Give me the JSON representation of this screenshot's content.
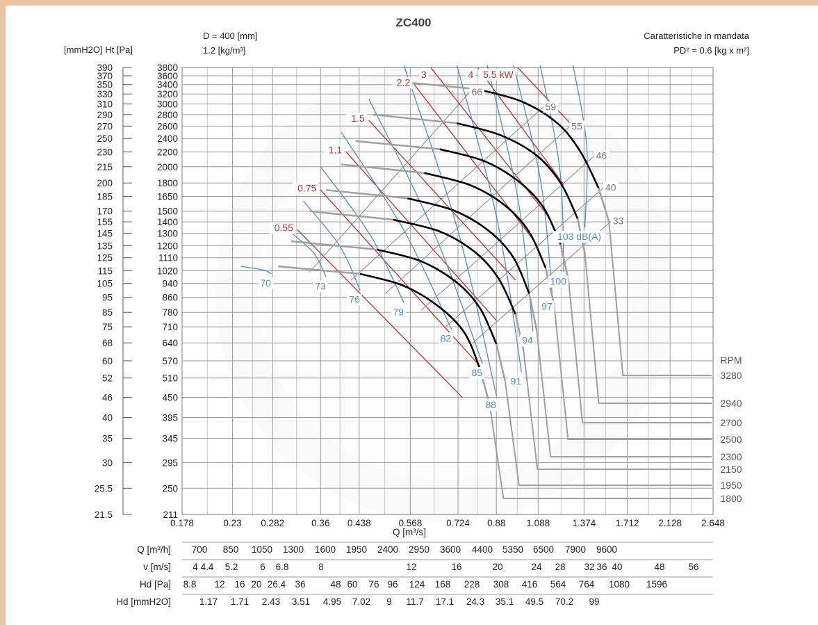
{
  "header": {
    "title": "ZC400",
    "left_axis_units": "[mmH2O] Ht [Pa]",
    "diameter": "D = 400 [mm]",
    "density": "1.2 [kg/m³]",
    "right_line1": "Caratteristiche in mandata",
    "right_line2": "PD² = 0.6 [kg x m²]"
  },
  "chart_data": {
    "type": "line",
    "title": "ZC400",
    "xlabel": "Q [m³/s]",
    "ylabel": "Ht [Pa]",
    "x_scale": "log",
    "y_scale": "log",
    "xlim": [
      0.178,
      2.648
    ],
    "ylim": [
      211,
      3800
    ],
    "x_ticks": [
      "0.178",
      "0.23",
      "0.282",
      "0.36",
      "0.438",
      "0.568",
      "0.724",
      "0.88",
      "1.088",
      "1.374",
      "1.712",
      "2.128",
      "2.648"
    ],
    "y_ticks_pa": [
      "3800",
      "3600",
      "3400",
      "3200",
      "3000",
      "2800",
      "2600",
      "2400",
      "2200",
      "2000",
      "1800",
      "1650",
      "1500",
      "1400",
      "1300",
      "1200",
      "1110",
      "1020",
      "940",
      "860",
      "780",
      "710",
      "640",
      "570",
      "510",
      "450",
      "395",
      "345",
      "295",
      "250",
      "211"
    ],
    "y_ticks_mmh2o": [
      "390",
      "370",
      "350",
      "330",
      "310",
      "290",
      "270",
      "250",
      "230",
      "215",
      "200",
      "185",
      "170",
      "155",
      "145",
      "135",
      "125",
      "115",
      "105",
      "95",
      "85",
      "75",
      "68",
      "60",
      "52",
      "46",
      "40",
      "35",
      "30",
      "25.5",
      "21.5"
    ],
    "rpm_header": "RPM",
    "rpm_curves": [
      {
        "rpm": "3280",
        "points": [
          [
            0.52,
            3480
          ],
          [
            0.8,
            3300
          ],
          [
            1.0,
            3050
          ],
          [
            1.2,
            2650
          ],
          [
            1.35,
            2200
          ],
          [
            1.48,
            1740
          ],
          [
            1.56,
            1400
          ]
        ]
      },
      {
        "rpm": "2940",
        "points": [
          [
            0.47,
            2800
          ],
          [
            0.72,
            2650
          ],
          [
            0.9,
            2450
          ],
          [
            1.08,
            2150
          ],
          [
            1.22,
            1800
          ],
          [
            1.33,
            1430
          ],
          [
            1.38,
            1140
          ]
        ]
      },
      {
        "rpm": "2700",
        "points": [
          [
            0.43,
            2360
          ],
          [
            0.66,
            2240
          ],
          [
            0.83,
            2070
          ],
          [
            0.99,
            1810
          ],
          [
            1.12,
            1530
          ],
          [
            1.22,
            1210
          ],
          [
            1.27,
            960
          ]
        ]
      },
      {
        "rpm": "2500",
        "points": [
          [
            0.4,
            2030
          ],
          [
            0.61,
            1920
          ],
          [
            0.77,
            1775
          ],
          [
            0.92,
            1555
          ],
          [
            1.04,
            1310
          ],
          [
            1.13,
            1040
          ],
          [
            1.18,
            820
          ]
        ]
      },
      {
        "rpm": "2300",
        "points": [
          [
            0.37,
            1720
          ],
          [
            0.56,
            1630
          ],
          [
            0.71,
            1505
          ],
          [
            0.85,
            1315
          ],
          [
            0.96,
            1110
          ],
          [
            1.04,
            880
          ],
          [
            1.08,
            695
          ]
        ]
      },
      {
        "rpm": "2150",
        "points": [
          [
            0.34,
            1500
          ],
          [
            0.52,
            1420
          ],
          [
            0.66,
            1315
          ],
          [
            0.79,
            1150
          ],
          [
            0.89,
            970
          ],
          [
            0.97,
            770
          ],
          [
            1.01,
            610
          ]
        ]
      },
      {
        "rpm": "1950",
        "points": [
          [
            0.31,
            1235
          ],
          [
            0.48,
            1170
          ],
          [
            0.6,
            1085
          ],
          [
            0.72,
            945
          ],
          [
            0.81,
            800
          ],
          [
            0.88,
            635
          ],
          [
            0.92,
            500
          ]
        ]
      },
      {
        "rpm": "1800",
        "points": [
          [
            0.29,
            1050
          ],
          [
            0.44,
            1000
          ],
          [
            0.55,
            925
          ],
          [
            0.66,
            805
          ],
          [
            0.75,
            680
          ],
          [
            0.81,
            540
          ],
          [
            0.85,
            430
          ]
        ]
      }
    ],
    "power_kw": [
      {
        "label": "5.5 kW",
        "points": [
          [
            0.98,
            3850
          ],
          [
            1.28,
            2650
          ]
        ]
      },
      {
        "label": "4",
        "points": [
          [
            0.8,
            3850
          ],
          [
            1.24,
            1780
          ]
        ]
      },
      {
        "label": "3",
        "points": [
          [
            0.63,
            3850
          ],
          [
            1.16,
            1420
          ]
        ]
      },
      {
        "label": "2.2",
        "points": [
          [
            0.58,
            3400
          ],
          [
            1.06,
            1250
          ]
        ]
      },
      {
        "label": "1.5",
        "points": [
          [
            0.46,
            2700
          ],
          [
            0.97,
            960
          ]
        ]
      },
      {
        "label": "1.1",
        "points": [
          [
            0.41,
            2200
          ],
          [
            0.88,
            740
          ]
        ]
      },
      {
        "label": "0.75",
        "points": [
          [
            0.36,
            1720
          ],
          [
            0.8,
            560
          ]
        ]
      },
      {
        "label": "0.55",
        "points": [
          [
            0.32,
            1330
          ],
          [
            0.74,
            450
          ]
        ]
      }
    ],
    "noise_dba": [
      {
        "label": "70",
        "points": [
          [
            0.24,
            1050
          ],
          [
            0.28,
            1000
          ]
        ]
      },
      {
        "label": "73",
        "points": [
          [
            0.3,
            1350
          ],
          [
            0.37,
            980
          ]
        ]
      },
      {
        "label": "76",
        "points": [
          [
            0.33,
            1600
          ],
          [
            0.44,
            900
          ]
        ]
      },
      {
        "label": "79",
        "points": [
          [
            0.36,
            2000
          ],
          [
            0.55,
            830
          ]
        ]
      },
      {
        "label": "82",
        "points": [
          [
            0.4,
            2500
          ],
          [
            0.7,
            700
          ]
        ]
      },
      {
        "label": "85",
        "points": [
          [
            0.46,
            3100
          ],
          [
            0.82,
            560
          ]
        ]
      },
      {
        "label": "88",
        "points": [
          [
            0.55,
            3850
          ],
          [
            0.88,
            455
          ]
        ]
      },
      {
        "label": "91",
        "points": [
          [
            0.72,
            3850
          ],
          [
            1.0,
            530
          ]
        ]
      },
      {
        "label": "94",
        "points": [
          [
            0.84,
            3850
          ],
          [
            1.06,
            690
          ]
        ]
      },
      {
        "label": "97",
        "points": [
          [
            0.96,
            3850
          ],
          [
            1.17,
            860
          ]
        ]
      },
      {
        "label": "100",
        "points": [
          [
            1.1,
            3850
          ],
          [
            1.24,
            1010
          ]
        ]
      },
      {
        "label": "103 dB(A)",
        "points": [
          [
            1.3,
            3850
          ],
          [
            1.38,
            1350
          ]
        ]
      }
    ],
    "efficiency_pct": [
      {
        "label": "66",
        "points": [
          [
            0.34,
            1010
          ],
          [
            0.77,
            3250
          ]
        ]
      },
      {
        "label": "59",
        "points": [
          [
            0.42,
            960
          ],
          [
            1.12,
            2950
          ]
        ]
      },
      {
        "label": "55",
        "points": [
          [
            0.5,
            880
          ],
          [
            1.28,
            2600
          ]
        ]
      },
      {
        "label": "46",
        "points": [
          [
            0.6,
            790
          ],
          [
            1.45,
            2150
          ]
        ]
      },
      {
        "label": "40",
        "points": [
          [
            0.68,
            710
          ],
          [
            1.52,
            1750
          ]
        ]
      },
      {
        "label": "33",
        "points": [
          [
            0.78,
            640
          ],
          [
            1.58,
            1410
          ]
        ]
      }
    ]
  },
  "scales": {
    "q_m3h": {
      "label": "Q [m³/h]",
      "values": [
        "700",
        "850",
        "1050",
        "1300",
        "1600",
        "1950",
        "2400",
        "2950",
        "3600",
        "4400",
        "5350",
        "6500",
        "7900",
        "9600"
      ]
    },
    "v_ms": {
      "label": "v [m/s]",
      "values": [
        "4",
        "4.4",
        "5.2",
        "6",
        "6.8",
        "8",
        "12",
        "16",
        "20",
        "24",
        "28",
        "32",
        "36",
        "40",
        "48",
        "56"
      ]
    },
    "hd_pa": {
      "label": "Hd [Pa]",
      "values": [
        "8.8",
        "12",
        "16",
        "20",
        "26.4",
        "36",
        "48",
        "60",
        "76",
        "96",
        "124",
        "168",
        "228",
        "308",
        "416",
        "564",
        "764",
        "1080",
        "1596"
      ]
    },
    "hd_mmh2o": {
      "label": "Hd [mmH2O]",
      "values": [
        "1.17",
        "1.71",
        "2.43",
        "3.51",
        "4.95",
        "7.02",
        "9",
        "11.7",
        "17.1",
        "24.3",
        "35.1",
        "49.5",
        "70.2",
        "99"
      ]
    }
  }
}
